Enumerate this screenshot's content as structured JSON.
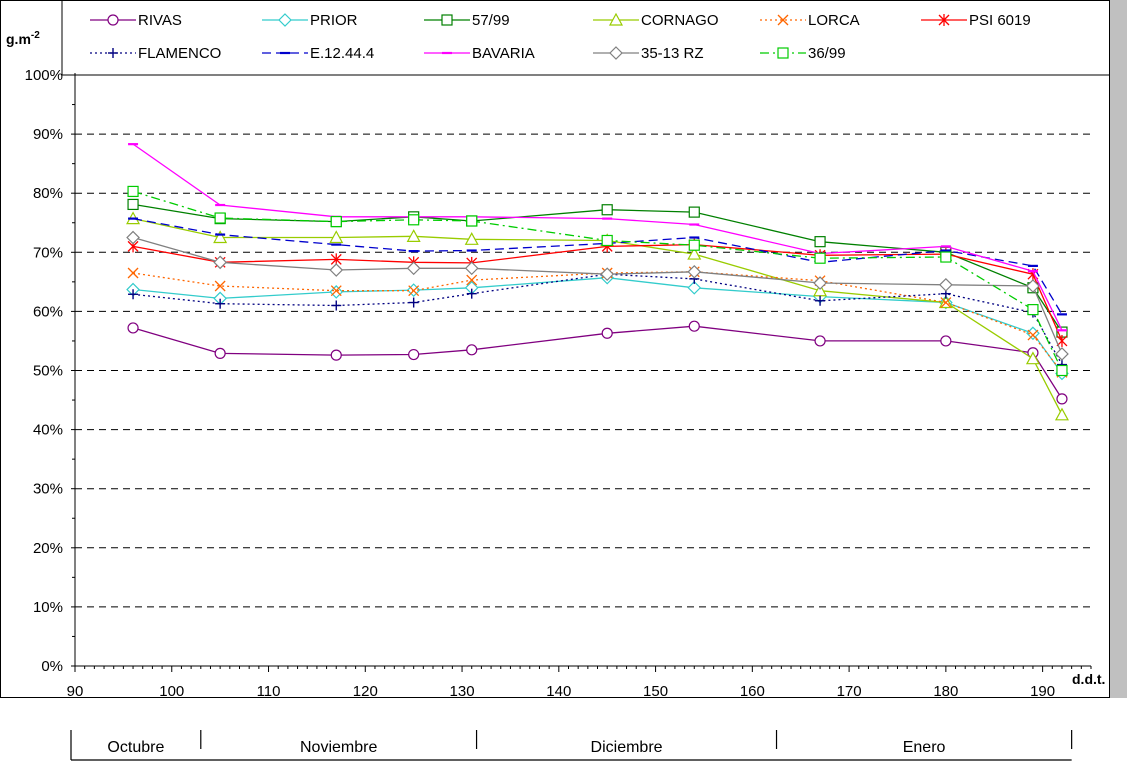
{
  "chart_data": {
    "type": "line",
    "ylabel": "g.m",
    "ylabel_sup": "-2",
    "xlabel": "d.d.t.",
    "xlim": [
      90,
      195
    ],
    "ylim": [
      0,
      1
    ],
    "xticks": [
      90,
      100,
      110,
      120,
      130,
      140,
      150,
      160,
      170,
      180,
      190
    ],
    "yticks": [
      0,
      0.1,
      0.2,
      0.3,
      0.4,
      0.5,
      0.6,
      0.7,
      0.8,
      0.9,
      1.0
    ],
    "ytick_labels": [
      "0%",
      "10%",
      "20%",
      "30%",
      "40%",
      "50%",
      "60%",
      "70%",
      "80%",
      "90%",
      "100%"
    ],
    "grid": "horizontal dashed",
    "legend_position": "top",
    "months": [
      {
        "label": "Octubre",
        "from": 90,
        "to": 103
      },
      {
        "label": "Noviembre",
        "from": 103,
        "to": 131.5
      },
      {
        "label": "Diciembre",
        "from": 131.5,
        "to": 162.5
      },
      {
        "label": "Enero",
        "from": 162.5,
        "to": 193
      }
    ],
    "x": [
      96,
      105,
      117,
      125,
      131,
      145,
      154,
      167,
      180,
      189,
      192
    ],
    "series": [
      {
        "name": "RIVAS",
        "color": "#800080",
        "dash": "",
        "marker": "circle",
        "values": [
          0.572,
          0.529,
          0.526,
          0.527,
          0.535,
          0.563,
          0.575,
          0.55,
          0.55,
          0.53,
          0.452
        ]
      },
      {
        "name": "PRIOR",
        "color": "#33cccc",
        "dash": "",
        "marker": "diamond",
        "values": [
          0.637,
          0.622,
          0.633,
          0.636,
          0.64,
          0.657,
          0.64,
          0.625,
          0.615,
          0.563,
          0.495
        ]
      },
      {
        "name": "57/99",
        "color": "#008000",
        "dash": "",
        "marker": "square",
        "values": [
          0.781,
          0.757,
          0.752,
          0.76,
          0.753,
          0.772,
          0.768,
          0.718,
          0.7,
          0.64,
          0.565
        ]
      },
      {
        "name": "CORNAGO",
        "color": "#99cc00",
        "dash": "",
        "marker": "triangle",
        "values": [
          0.757,
          0.725,
          0.725,
          0.727,
          0.722,
          0.72,
          0.697,
          0.635,
          0.615,
          0.52,
          0.425
        ]
      },
      {
        "name": "LORCA",
        "color": "#ff6600",
        "dash": "2,3",
        "marker": "x",
        "values": [
          0.665,
          0.643,
          0.635,
          0.635,
          0.653,
          0.665,
          0.667,
          0.652,
          0.615,
          0.56,
          0.497
        ]
      },
      {
        "name": "PSI 6019",
        "color": "#ff0000",
        "dash": "",
        "marker": "star",
        "values": [
          0.71,
          0.683,
          0.688,
          0.683,
          0.682,
          0.71,
          0.713,
          0.695,
          0.697,
          0.663,
          0.55
        ]
      },
      {
        "name": "FLAMENCO",
        "color": "#000080",
        "dash": "2,3",
        "marker": "plus",
        "values": [
          0.629,
          0.613,
          0.61,
          0.615,
          0.63,
          0.663,
          0.655,
          0.618,
          0.63,
          0.598,
          0.51
        ]
      },
      {
        "name": "E.12.44.4",
        "color": "#0000cc",
        "dash": "9,5",
        "marker": "dash",
        "values": [
          0.757,
          0.73,
          0.713,
          0.702,
          0.703,
          0.715,
          0.725,
          0.683,
          0.703,
          0.677,
          0.595
        ]
      },
      {
        "name": "BAVARIA",
        "color": "#ff00ff",
        "dash": "",
        "marker": "dash",
        "values": [
          0.883,
          0.78,
          0.76,
          0.76,
          0.76,
          0.757,
          0.747,
          0.698,
          0.71,
          0.668,
          0.568
        ]
      },
      {
        "name": "35-13 RZ",
        "color": "#808080",
        "dash": "",
        "marker": "diamond",
        "values": [
          0.725,
          0.683,
          0.67,
          0.673,
          0.673,
          0.663,
          0.667,
          0.648,
          0.645,
          0.643,
          0.528
        ]
      },
      {
        "name": "36/99",
        "color": "#00cc00",
        "dash": "9,4,2,4",
        "marker": "square",
        "values": [
          0.803,
          0.758,
          0.752,
          0.755,
          0.753,
          0.72,
          0.712,
          0.69,
          0.692,
          0.603,
          0.5
        ]
      }
    ]
  }
}
